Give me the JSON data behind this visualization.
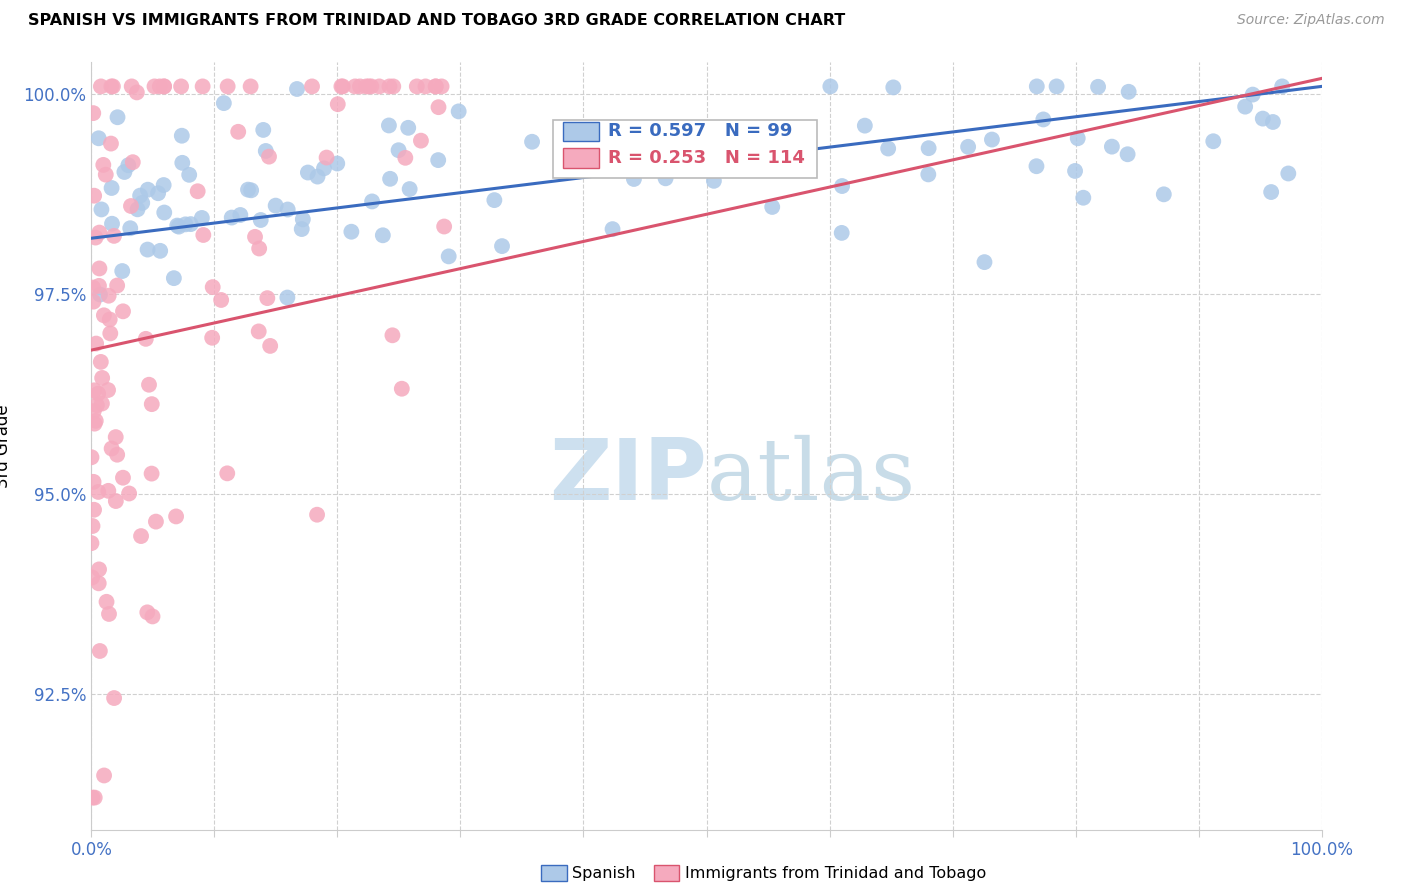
{
  "title": "SPANISH VS IMMIGRANTS FROM TRINIDAD AND TOBAGO 3RD GRADE CORRELATION CHART",
  "source": "Source: ZipAtlas.com",
  "ylabel": "3rd Grade",
  "xlim": [
    0.0,
    1.0
  ],
  "ylim": [
    0.908,
    1.004
  ],
  "yticks": [
    0.925,
    0.95,
    0.975,
    1.0
  ],
  "ytick_labels": [
    "92.5%",
    "95.0%",
    "97.5%",
    "100.0%"
  ],
  "legend_spanish_label": "Spanish",
  "legend_tt_label": "Immigrants from Trinidad and Tobago",
  "r_spanish": 0.597,
  "n_spanish": 99,
  "r_tt": 0.253,
  "n_tt": 114,
  "spanish_color": "#adc9e8",
  "tt_color": "#f5aabe",
  "trendline_spanish_color": "#3a6bbf",
  "trendline_tt_color": "#d9546e",
  "watermark_zip": "ZIP",
  "watermark_atlas": "atlas",
  "grid_color": "#d0d0d0",
  "spine_color": "#cccccc",
  "tick_color": "#4472c4"
}
